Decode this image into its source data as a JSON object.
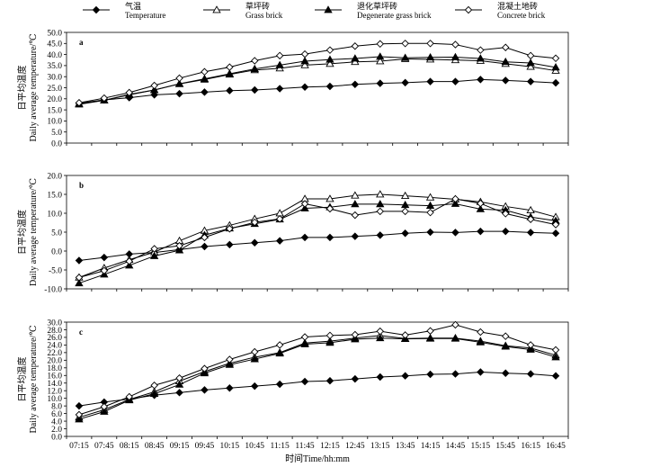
{
  "legend": [
    {
      "label_cn": "气温",
      "label_en": "Temperature",
      "marker": "diamond-filled"
    },
    {
      "label_cn": "草坪砖",
      "label_en": "Grass brick",
      "marker": "triangle-open"
    },
    {
      "label_cn": "退化草坪砖",
      "label_en": "Degenerate grass brick",
      "marker": "triangle-filled"
    },
    {
      "label_cn": "混凝土地砖",
      "label_en": "Concrete brick",
      "marker": "diamond-open"
    }
  ],
  "xlabel": "时间Time/hh:mm",
  "ylabel_cn": "日平均温度",
  "ylabel_en": "Daily average temperature/℃",
  "chart_data": [
    {
      "panel": "a",
      "type": "line",
      "ylim": [
        0,
        50
      ],
      "yticks": [
        "0.0",
        "5.0",
        "10.0",
        "15.0",
        "20.0",
        "25.0",
        "30.0",
        "35.0",
        "40.0",
        "45.0",
        "50.0"
      ],
      "x": [
        "07:15",
        "07:45",
        "08:15",
        "08:45",
        "09:15",
        "09:45",
        "10:15",
        "10:45",
        "11:15",
        "11:45",
        "12:15",
        "12:45",
        "13:15",
        "13:45",
        "14:15",
        "14:45",
        "15:15",
        "15:45",
        "16:15",
        "16:45"
      ],
      "series": [
        {
          "name": "Temperature",
          "values": [
            18.0,
            19.5,
            20.5,
            21.8,
            22.3,
            23.0,
            23.7,
            24.0,
            24.6,
            25.3,
            25.6,
            26.5,
            27.0,
            27.3,
            27.8,
            27.8,
            28.7,
            28.3,
            27.8,
            27.2
          ]
        },
        {
          "name": "Grass brick",
          "values": [
            17.8,
            19.3,
            21.8,
            24.0,
            26.7,
            28.7,
            31.0,
            33.0,
            33.8,
            35.2,
            35.8,
            36.7,
            37.0,
            38.0,
            37.8,
            37.5,
            37.2,
            35.8,
            34.5,
            32.7
          ]
        },
        {
          "name": "Degenerate grass brick",
          "values": [
            17.5,
            19.3,
            22.0,
            24.0,
            26.8,
            29.0,
            31.3,
            33.5,
            35.2,
            37.0,
            37.7,
            38.2,
            39.0,
            38.5,
            38.7,
            38.8,
            38.2,
            36.7,
            36.2,
            34.2
          ]
        },
        {
          "name": "Concrete brick",
          "values": [
            18.2,
            20.3,
            22.8,
            26.0,
            29.3,
            32.2,
            34.3,
            37.2,
            39.5,
            40.2,
            42.0,
            43.8,
            44.8,
            45.0,
            45.0,
            44.5,
            42.0,
            43.2,
            39.5,
            38.3
          ]
        }
      ]
    },
    {
      "panel": "b",
      "type": "line",
      "ylim": [
        -10,
        20
      ],
      "yticks": [
        "-10.0",
        "-5.0",
        "0.0",
        "5.0",
        "10.0",
        "15.0",
        "20.0"
      ],
      "x": [
        "07:15",
        "07:45",
        "08:15",
        "08:45",
        "09:15",
        "09:45",
        "10:15",
        "10:45",
        "11:15",
        "11:45",
        "12:15",
        "12:45",
        "13:15",
        "13:45",
        "14:15",
        "14:45",
        "15:15",
        "15:45",
        "16:15",
        "16:45"
      ],
      "series": [
        {
          "name": "Temperature",
          "values": [
            -2.5,
            -1.7,
            -0.8,
            -0.4,
            0.4,
            1.2,
            1.7,
            2.2,
            2.7,
            3.6,
            3.6,
            3.9,
            4.2,
            4.7,
            5.0,
            4.9,
            5.2,
            5.2,
            4.9,
            4.7
          ]
        },
        {
          "name": "Grass brick",
          "values": [
            -7.0,
            -4.5,
            -2.3,
            -0.3,
            2.7,
            5.4,
            6.8,
            8.5,
            10.0,
            13.8,
            13.8,
            14.7,
            15.0,
            14.6,
            14.2,
            13.7,
            13.0,
            11.8,
            10.8,
            9.0
          ]
        },
        {
          "name": "Degenerate grass brick",
          "values": [
            -8.5,
            -6.2,
            -3.8,
            -1.3,
            0.2,
            4.2,
            6.0,
            7.2,
            8.4,
            11.3,
            11.6,
            12.4,
            12.4,
            12.2,
            12.0,
            12.5,
            11.1,
            10.8,
            9.0,
            8.0
          ]
        },
        {
          "name": "Concrete brick",
          "values": [
            -7.0,
            -5.2,
            -2.7,
            0.6,
            1.4,
            3.6,
            5.9,
            7.6,
            8.5,
            12.5,
            11.2,
            9.5,
            10.5,
            10.5,
            10.2,
            13.8,
            12.6,
            9.9,
            8.4,
            7.0
          ]
        }
      ]
    },
    {
      "panel": "c",
      "type": "line",
      "ylim": [
        0,
        30
      ],
      "yticks": [
        "0.0",
        "2.0",
        "4.0",
        "6.0",
        "8.0",
        "10.0",
        "12.0",
        "14.0",
        "16.0",
        "18.0",
        "20.0",
        "22.0",
        "24.0",
        "26.0",
        "28.0",
        "30.0"
      ],
      "x": [
        "07:15",
        "07:45",
        "08:15",
        "08:45",
        "09:15",
        "09:45",
        "10:15",
        "10:45",
        "11:15",
        "11:45",
        "12:15",
        "12:45",
        "13:15",
        "13:45",
        "14:15",
        "14:45",
        "15:15",
        "15:45",
        "16:15",
        "16:45"
      ],
      "series": [
        {
          "name": "Temperature",
          "values": [
            8.0,
            9.0,
            9.8,
            10.8,
            11.5,
            12.2,
            12.7,
            13.2,
            13.7,
            14.4,
            14.6,
            15.1,
            15.6,
            15.9,
            16.3,
            16.4,
            16.9,
            16.6,
            16.4,
            15.9
          ]
        },
        {
          "name": "Grass brick",
          "values": [
            5.0,
            7.0,
            9.7,
            11.7,
            14.5,
            17.0,
            19.2,
            20.8,
            22.0,
            24.5,
            25.0,
            25.8,
            26.5,
            25.7,
            25.8,
            25.8,
            25.0,
            23.8,
            23.2,
            21.3
          ]
        },
        {
          "name": "Degenerate grass brick",
          "values": [
            4.5,
            6.5,
            9.5,
            11.2,
            13.6,
            16.6,
            18.8,
            20.3,
            21.8,
            24.2,
            24.6,
            25.5,
            25.8,
            25.6,
            25.7,
            25.7,
            24.7,
            23.6,
            22.8,
            20.8
          ]
        },
        {
          "name": "Concrete brick",
          "values": [
            5.7,
            7.8,
            10.4,
            13.4,
            15.3,
            17.8,
            20.2,
            22.2,
            24.0,
            26.1,
            26.5,
            26.7,
            27.6,
            26.6,
            27.7,
            29.3,
            27.4,
            26.3,
            24.0,
            22.7
          ]
        }
      ]
    }
  ]
}
